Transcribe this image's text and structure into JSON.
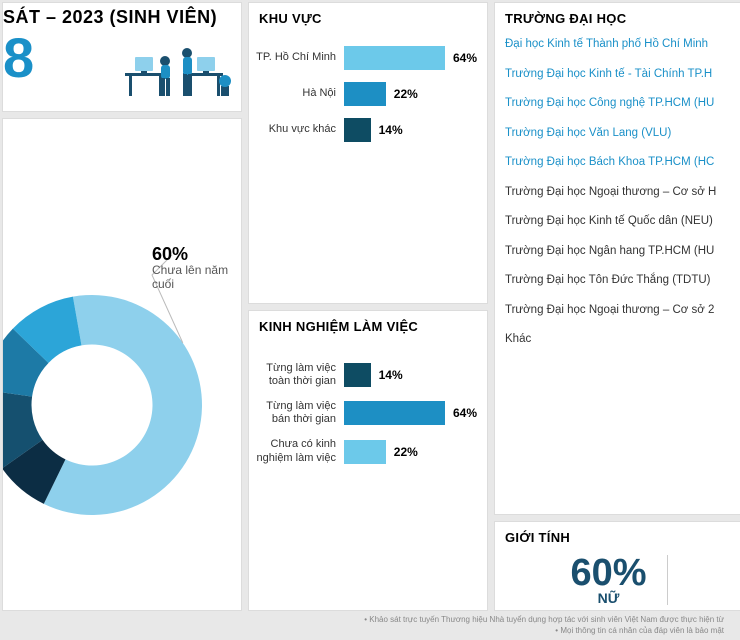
{
  "header": {
    "title_fragment": "SÁT – 2023 (SINH VIÊN)",
    "big_number_fragment": "8"
  },
  "donut": {
    "type": "donut",
    "label_pct": "60%",
    "label_text": "Chưa lên năm cuối",
    "segments": [
      {
        "value": 60,
        "color": "#8ed0ec"
      },
      {
        "value": 8,
        "color": "#0c2d44"
      },
      {
        "value": 12,
        "color": "#15506f"
      },
      {
        "value": 10,
        "color": "#1d7aa6"
      },
      {
        "value": 10,
        "color": "#2ca5d8"
      }
    ],
    "inner_radius_ratio": 0.55,
    "bg": "#ffffff"
  },
  "region": {
    "title": "KHU VỰC",
    "max": 70,
    "bars": [
      {
        "label": "TP. Hồ Chí Minh",
        "value": 64,
        "color": "#6cc9ea"
      },
      {
        "label": "Hà Nội",
        "value": 22,
        "color": "#1d8fc4"
      },
      {
        "label": "Khu vực khác",
        "value": 14,
        "color": "#0e4c63"
      }
    ]
  },
  "experience": {
    "title": "KINH NGHIỆM LÀM VIỆC",
    "max": 70,
    "bars": [
      {
        "label": "Từng làm việc toàn thời gian",
        "value": 14,
        "color": "#0e4c63"
      },
      {
        "label": "Từng làm việc bán thời gian",
        "value": 64,
        "color": "#1d8fc4"
      },
      {
        "label": "Chưa có kinh nghiệm làm việc",
        "value": 22,
        "color": "#6cc9ea"
      }
    ]
  },
  "universities": {
    "title": "TRƯỜNG ĐẠI HỌC",
    "items": [
      {
        "text": "Đại học Kinh tế Thành phố Hồ Chí Minh",
        "link": true
      },
      {
        "text": "Trường Đại học Kinh tế - Tài Chính TP.H",
        "link": true
      },
      {
        "text": "Trường Đại học Công nghệ TP.HCM (HU",
        "link": true
      },
      {
        "text": "Trường Đại học Văn Lang (VLU)",
        "link": true
      },
      {
        "text": "Trường Đại học Bách Khoa TP.HCM (HC",
        "link": true
      },
      {
        "text": "Trường Đại học Ngoại thương – Cơ sở H",
        "link": false
      },
      {
        "text": "Trường Đại học Kinh tế Quốc dân (NEU)",
        "link": false
      },
      {
        "text": "Trường Đại học Ngân hang TP.HCM (HU",
        "link": false
      },
      {
        "text": "Trường Đại học Tôn Đức Thắng (TDTU)",
        "link": false
      },
      {
        "text": "Trường Đại học Ngoại thương – Cơ sở 2",
        "link": false
      },
      {
        "text": "Khác",
        "link": false
      }
    ]
  },
  "gender": {
    "title": "GIỚI TÍNH",
    "pct": "60%",
    "label": "NỮ"
  },
  "footer": {
    "line1": "Khảo sát trực tuyến Thương hiệu Nhà tuyển dụng hợp tác với sinh viên Việt Nam được thực hiện từ",
    "line2": "Mọi thông tin cá nhân của đáp viên là bảo mật"
  },
  "colors": {
    "card_border": "#dcdcdc",
    "page_bg": "#e8e8e8",
    "accent": "#1a90c8",
    "text": "#333333"
  }
}
